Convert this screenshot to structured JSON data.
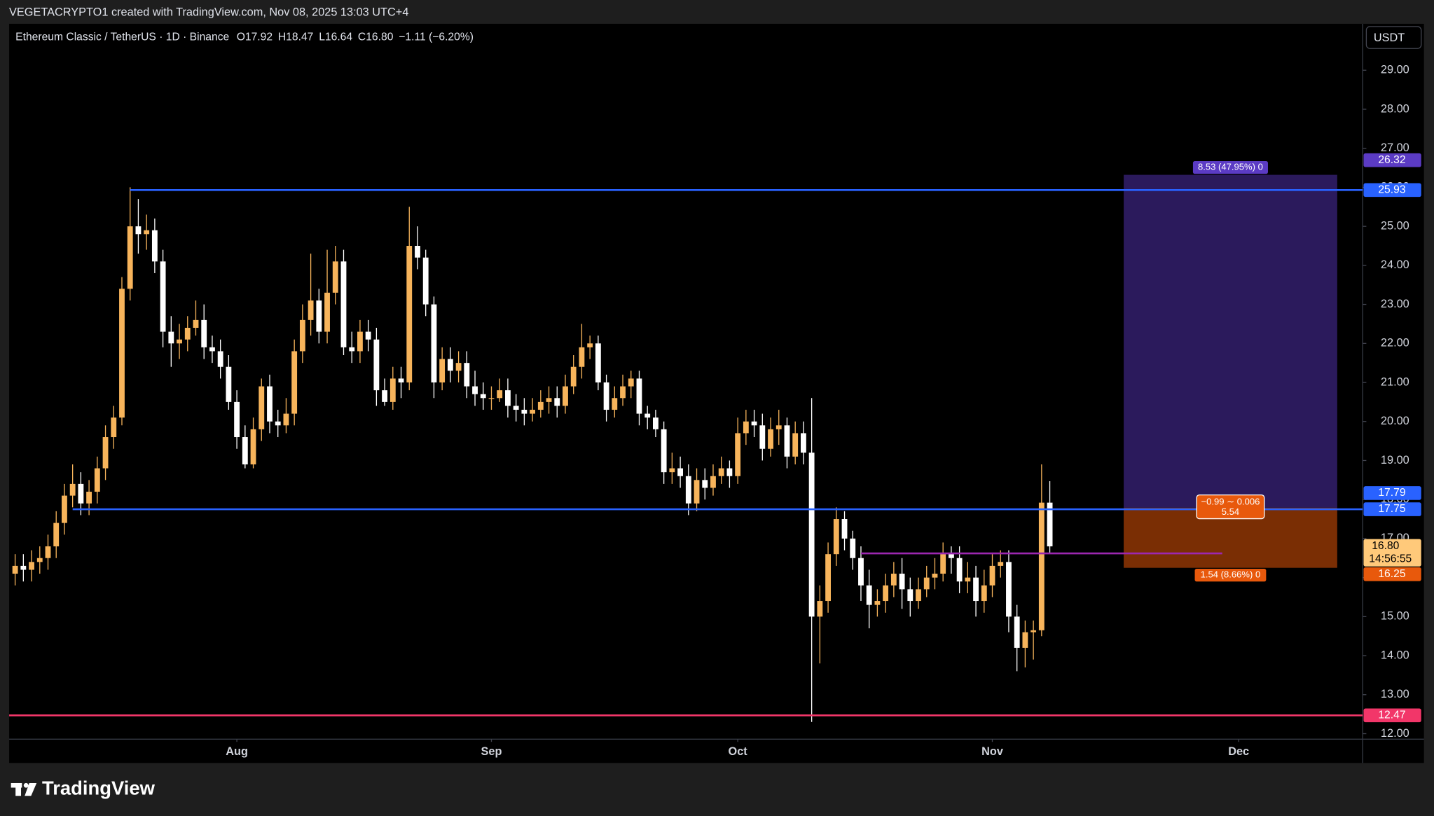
{
  "header": {
    "credit": "VEGETACRYPTO1 created with TradingView.com, Nov 08, 2025 13:03 UTC+4"
  },
  "footer": {
    "brand": "TradingView"
  },
  "chart_data": {
    "type": "candlestick",
    "title": "Ethereum Classic / TetherUS · 1D · Binance",
    "ohlc_legend": [
      "O17.92",
      "H18.47",
      "L16.64",
      "C16.80",
      "−1.11 (−6.20%)"
    ],
    "currency": "USDT",
    "up_color": "#f7b45b",
    "down_color": "#ffffff",
    "grid": false,
    "xlim": [
      0.27,
      165.1
    ],
    "xticks": [
      {
        "value": 28,
        "label": "Aug"
      },
      {
        "value": 59,
        "label": "Sep"
      },
      {
        "value": 89,
        "label": "Oct"
      },
      {
        "value": 120,
        "label": "Nov"
      },
      {
        "value": 150,
        "label": "Dec"
      }
    ],
    "ylim": [
      11.86,
      30.19
    ],
    "yticks": [
      {
        "value": 12,
        "label": "12.00"
      },
      {
        "value": 13,
        "label": "13.00"
      },
      {
        "value": 14,
        "label": "14.00"
      },
      {
        "value": 15,
        "label": "15.00"
      },
      {
        "value": 16,
        "label": "16.00"
      },
      {
        "value": 17,
        "label": "17.00"
      },
      {
        "value": 18,
        "label": "18.00"
      },
      {
        "value": 19,
        "label": "19.00"
      },
      {
        "value": 20,
        "label": "20.00"
      },
      {
        "value": 21,
        "label": "21.00"
      },
      {
        "value": 22,
        "label": "22.00"
      },
      {
        "value": 23,
        "label": "23.00"
      },
      {
        "value": 24,
        "label": "24.00"
      },
      {
        "value": 25,
        "label": "25.00"
      },
      {
        "value": 26,
        "label": "26.00"
      },
      {
        "value": 27,
        "label": "27.00"
      },
      {
        "value": 28,
        "label": "28.00"
      },
      {
        "value": 29,
        "label": "29.00"
      }
    ],
    "x": [
      1,
      2,
      3,
      4,
      5,
      6,
      7,
      8,
      9,
      10,
      11,
      12,
      13,
      14,
      15,
      16,
      17,
      18,
      19,
      20,
      21,
      22,
      23,
      24,
      25,
      26,
      27,
      28,
      29,
      30,
      31,
      32,
      33,
      34,
      35,
      36,
      37,
      38,
      39,
      40,
      41,
      42,
      43,
      44,
      45,
      46,
      47,
      48,
      49,
      50,
      51,
      52,
      53,
      54,
      55,
      56,
      57,
      58,
      59,
      60,
      61,
      62,
      63,
      64,
      65,
      66,
      67,
      68,
      69,
      70,
      71,
      72,
      73,
      74,
      75,
      76,
      77,
      78,
      79,
      80,
      81,
      82,
      83,
      84,
      85,
      86,
      87,
      88,
      89,
      90,
      91,
      92,
      93,
      94,
      95,
      96,
      97,
      98,
      99,
      100,
      101,
      102,
      103,
      104,
      105,
      106,
      107,
      108,
      109,
      110,
      111,
      112,
      113,
      114,
      115,
      116,
      117,
      118,
      119,
      120,
      121,
      122,
      123,
      124,
      125,
      126,
      127
    ],
    "open": [
      16.1,
      16.3,
      16.2,
      16.4,
      16.5,
      16.8,
      17.4,
      18.1,
      18.4,
      17.9,
      18.2,
      18.8,
      19.6,
      20.1,
      23.4,
      25.0,
      24.8,
      24.9,
      24.1,
      22.3,
      22.0,
      22.1,
      22.4,
      22.6,
      21.9,
      21.8,
      21.4,
      20.5,
      19.6,
      18.9,
      19.8,
      20.9,
      20.0,
      19.9,
      20.2,
      21.8,
      22.6,
      23.1,
      22.3,
      23.3,
      24.1,
      21.9,
      21.8,
      22.3,
      22.1,
      20.8,
      20.5,
      21.1,
      21.0,
      24.5,
      24.2,
      23.0,
      21.0,
      21.6,
      21.3,
      21.5,
      20.9,
      20.7,
      20.6,
      20.6,
      20.8,
      20.4,
      20.3,
      20.2,
      20.3,
      20.5,
      20.6,
      20.4,
      20.9,
      21.4,
      21.9,
      22.0,
      21.0,
      20.3,
      20.6,
      20.9,
      21.1,
      20.2,
      20.1,
      19.8,
      18.7,
      18.8,
      18.6,
      17.9,
      18.5,
      18.3,
      18.6,
      18.8,
      18.6,
      19.7,
      20.0,
      19.9,
      19.3,
      19.8,
      19.9,
      19.1,
      19.7,
      19.2,
      15.0,
      15.4,
      16.6,
      17.5,
      17.0,
      16.5,
      15.8,
      15.3,
      15.4,
      15.8,
      16.1,
      15.7,
      15.4,
      15.7,
      16.0,
      16.1,
      16.6,
      16.5,
      15.9,
      16.0,
      15.4,
      15.8,
      16.3,
      16.4,
      15.0,
      14.2,
      14.6,
      14.65,
      17.92
    ],
    "high": [
      16.6,
      16.6,
      16.7,
      16.8,
      17.1,
      17.7,
      18.4,
      18.9,
      18.7,
      18.5,
      19.1,
      19.9,
      20.4,
      23.7,
      26.0,
      25.7,
      25.3,
      25.2,
      24.4,
      22.7,
      22.5,
      22.7,
      23.1,
      23.0,
      22.2,
      22.1,
      21.7,
      20.8,
      19.9,
      20.1,
      21.1,
      21.2,
      20.3,
      20.6,
      22.1,
      23.0,
      24.3,
      23.4,
      24.4,
      24.5,
      24.4,
      22.3,
      22.6,
      22.6,
      22.4,
      21.1,
      21.4,
      21.4,
      25.5,
      25.0,
      24.4,
      23.2,
      21.9,
      21.9,
      21.8,
      21.8,
      21.3,
      21.0,
      20.9,
      21.1,
      21.1,
      20.7,
      20.6,
      20.6,
      20.8,
      20.9,
      20.9,
      21.2,
      21.7,
      22.5,
      22.2,
      22.2,
      21.2,
      20.9,
      21.2,
      21.3,
      21.3,
      20.4,
      20.3,
      20.0,
      19.2,
      19.1,
      18.9,
      18.8,
      18.8,
      18.9,
      19.1,
      19.0,
      20.1,
      20.3,
      20.3,
      20.2,
      20.1,
      20.3,
      20.1,
      20.0,
      20.0,
      20.6,
      15.8,
      16.9,
      17.8,
      17.7,
      17.2,
      16.8,
      16.2,
      15.7,
      16.1,
      16.4,
      16.5,
      16.0,
      16.0,
      16.3,
      16.5,
      16.9,
      16.8,
      16.8,
      16.4,
      16.3,
      16.2,
      16.6,
      16.7,
      16.7,
      15.3,
      14.9,
      14.9,
      18.9,
      18.47
    ],
    "low": [
      15.8,
      15.9,
      15.9,
      16.1,
      16.2,
      16.5,
      17.1,
      17.8,
      17.6,
      17.6,
      17.9,
      18.5,
      19.3,
      19.9,
      23.1,
      24.3,
      24.4,
      23.8,
      21.9,
      21.4,
      21.6,
      21.8,
      22.2,
      21.6,
      21.5,
      21.1,
      20.3,
      19.3,
      18.8,
      18.8,
      19.5,
      19.7,
      19.6,
      19.7,
      19.9,
      21.5,
      22.2,
      22.0,
      22.0,
      23.0,
      21.7,
      21.5,
      21.5,
      21.8,
      20.4,
      20.4,
      20.3,
      20.6,
      20.8,
      23.9,
      22.7,
      20.6,
      20.8,
      21.0,
      21.0,
      20.6,
      20.4,
      20.3,
      20.3,
      20.5,
      20.1,
      20.0,
      19.9,
      20.0,
      20.1,
      20.2,
      20.1,
      20.2,
      20.7,
      21.1,
      21.6,
      20.8,
      20.0,
      20.1,
      20.4,
      20.6,
      19.9,
      19.8,
      19.6,
      18.4,
      18.4,
      18.3,
      17.6,
      17.7,
      18.0,
      18.1,
      18.4,
      18.3,
      18.4,
      19.4,
      19.6,
      19.0,
      19.1,
      19.4,
      18.8,
      18.9,
      18.9,
      12.3,
      13.8,
      15.1,
      16.3,
      16.7,
      16.2,
      15.4,
      14.7,
      15.0,
      15.1,
      15.5,
      15.2,
      15.0,
      15.2,
      15.5,
      15.7,
      15.9,
      16.1,
      15.6,
      15.6,
      15.0,
      15.1,
      15.5,
      16.0,
      14.6,
      13.6,
      13.7,
      13.9,
      14.5,
      16.64
    ],
    "close": [
      16.3,
      16.2,
      16.4,
      16.5,
      16.8,
      17.4,
      18.1,
      18.4,
      17.9,
      18.2,
      18.8,
      19.6,
      20.1,
      23.4,
      25.0,
      24.8,
      24.9,
      24.1,
      22.3,
      22.0,
      22.1,
      22.4,
      22.6,
      21.9,
      21.8,
      21.4,
      20.5,
      19.6,
      18.9,
      19.8,
      20.9,
      20.0,
      19.9,
      20.2,
      21.8,
      22.6,
      23.1,
      22.3,
      23.3,
      24.1,
      21.9,
      21.8,
      22.3,
      22.1,
      20.8,
      20.5,
      21.1,
      21.0,
      24.5,
      24.2,
      23.0,
      21.0,
      21.6,
      21.3,
      21.5,
      20.9,
      20.7,
      20.6,
      20.6,
      20.8,
      20.4,
      20.3,
      20.2,
      20.3,
      20.5,
      20.6,
      20.4,
      20.9,
      21.4,
      21.9,
      22.0,
      21.0,
      20.3,
      20.6,
      20.9,
      21.1,
      20.2,
      20.1,
      19.8,
      18.7,
      18.8,
      18.6,
      17.9,
      18.5,
      18.3,
      18.6,
      18.8,
      18.6,
      19.7,
      20.0,
      19.9,
      19.3,
      19.8,
      19.9,
      19.1,
      19.7,
      19.2,
      15.0,
      15.4,
      16.6,
      17.5,
      17.0,
      16.5,
      15.8,
      15.3,
      15.4,
      15.8,
      16.1,
      15.7,
      15.4,
      15.7,
      16.0,
      16.1,
      16.6,
      16.5,
      15.9,
      16.0,
      15.4,
      15.8,
      16.3,
      16.4,
      15.0,
      14.2,
      14.6,
      14.65,
      17.92,
      16.8
    ],
    "lines": [
      {
        "value": 25.93,
        "from": 15,
        "color": "#2962ff"
      },
      {
        "value": 17.75,
        "from": 8,
        "color": "#2962ff"
      },
      {
        "value": 12.47,
        "color": "#f23669"
      }
    ],
    "segments": [
      {
        "value": 16.62,
        "from": 104,
        "to": 148,
        "color": "#9c27b0"
      }
    ],
    "position": {
      "x_start": 136,
      "x_end": 162,
      "entry": 17.79,
      "target": 26.32,
      "stop": 16.25,
      "target_color": "#2b1a5c",
      "stop_color": "#7a2e04",
      "entry_tag_color": "#2962ff",
      "target_tag_color": "#5b3bc4",
      "stop_tag_color": "#e8590c",
      "target_label": "8.53 (47.95%) 0",
      "entry_label": [
        "−0.99 ∼ 0.006",
        "5.54"
      ],
      "stop_label": "1.54 (8.66%) 0"
    },
    "last_price": {
      "value": 16.8,
      "label": "16.80",
      "countdown": "14:56:55",
      "color": "#ffc97a"
    }
  }
}
